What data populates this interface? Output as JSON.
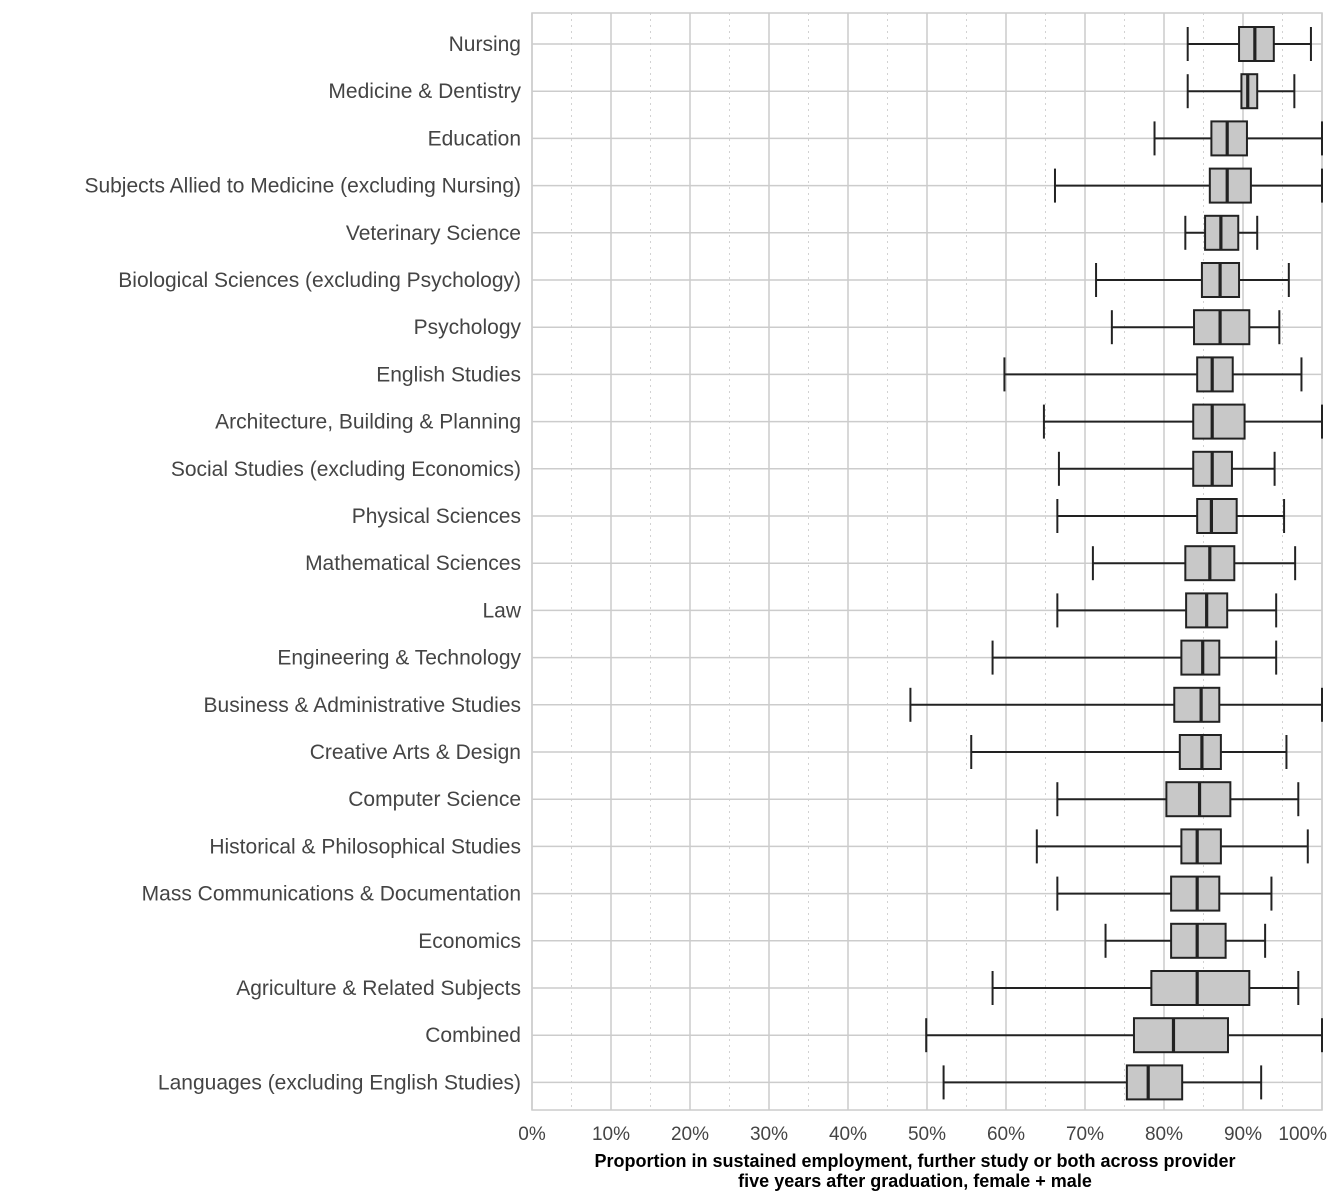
{
  "chart_data": {
    "type": "boxplot",
    "orientation": "horizontal",
    "xlabel_lines": [
      "Proportion in sustained employment, further study or both across provider",
      "five years after graduation, female + male"
    ],
    "ylabel": "",
    "xlim": [
      0,
      100
    ],
    "xticks": [
      0,
      10,
      20,
      30,
      40,
      50,
      60,
      70,
      80,
      90,
      100
    ],
    "xtick_labels": [
      "0%",
      "10%",
      "20%",
      "30%",
      "40%",
      "50%",
      "60%",
      "70%",
      "80%",
      "90%",
      "100%"
    ],
    "grid": "major solid, minor dotted",
    "box_color": "#c8c8c8",
    "line_color": "#222222",
    "categories": [
      "Nursing",
      "Medicine & Dentistry",
      "Education",
      "Subjects Allied to Medicine (excluding Nursing)",
      "Veterinary Science",
      "Biological Sciences (excluding Psychology)",
      "Psychology",
      "English Studies",
      "Architecture, Building & Planning",
      "Social Studies (excluding Economics)",
      "Physical Sciences",
      "Mathematical Sciences",
      "Law",
      "Engineering & Technology",
      "Business & Administrative Studies",
      "Creative Arts & Design",
      "Computer Science",
      "Historical & Philosophical Studies",
      "Mass Communications & Documentation",
      "Economics",
      "Agriculture & Related Subjects",
      "Combined",
      "Languages (excluding English Studies)"
    ],
    "boxes": [
      {
        "min": 83.0,
        "q1": 89.5,
        "median": 91.5,
        "q3": 93.9,
        "max": 98.6
      },
      {
        "min": 83.0,
        "q1": 89.8,
        "median": 90.6,
        "q3": 91.8,
        "max": 96.5
      },
      {
        "min": 78.8,
        "q1": 86.0,
        "median": 88.0,
        "q3": 90.5,
        "max": 100.0
      },
      {
        "min": 66.2,
        "q1": 85.8,
        "median": 88.0,
        "q3": 91.0,
        "max": 100.0
      },
      {
        "min": 82.7,
        "q1": 85.2,
        "median": 87.2,
        "q3": 89.4,
        "max": 91.8
      },
      {
        "min": 71.4,
        "q1": 84.8,
        "median": 87.1,
        "q3": 89.5,
        "max": 95.8
      },
      {
        "min": 73.4,
        "q1": 83.8,
        "median": 87.1,
        "q3": 90.8,
        "max": 94.6
      },
      {
        "min": 59.8,
        "q1": 84.2,
        "median": 86.1,
        "q3": 88.7,
        "max": 97.4
      },
      {
        "min": 64.8,
        "q1": 83.7,
        "median": 86.1,
        "q3": 90.2,
        "max": 100.0
      },
      {
        "min": 66.7,
        "q1": 83.7,
        "median": 86.1,
        "q3": 88.6,
        "max": 94.0
      },
      {
        "min": 66.5,
        "q1": 84.2,
        "median": 86.0,
        "q3": 89.2,
        "max": 95.2
      },
      {
        "min": 71.0,
        "q1": 82.7,
        "median": 85.8,
        "q3": 88.9,
        "max": 96.6
      },
      {
        "min": 66.5,
        "q1": 82.8,
        "median": 85.4,
        "q3": 88.0,
        "max": 94.2
      },
      {
        "min": 58.3,
        "q1": 82.2,
        "median": 84.9,
        "q3": 87.0,
        "max": 94.2
      },
      {
        "min": 47.9,
        "q1": 81.3,
        "median": 84.7,
        "q3": 87.0,
        "max": 100.0
      },
      {
        "min": 55.6,
        "q1": 82.0,
        "median": 84.8,
        "q3": 87.2,
        "max": 95.5
      },
      {
        "min": 66.5,
        "q1": 80.3,
        "median": 84.5,
        "q3": 88.4,
        "max": 97.0
      },
      {
        "min": 63.9,
        "q1": 82.2,
        "median": 84.2,
        "q3": 87.2,
        "max": 98.2
      },
      {
        "min": 66.5,
        "q1": 80.9,
        "median": 84.2,
        "q3": 87.0,
        "max": 93.6
      },
      {
        "min": 72.6,
        "q1": 80.9,
        "median": 84.2,
        "q3": 87.8,
        "max": 92.8
      },
      {
        "min": 58.3,
        "q1": 78.4,
        "median": 84.2,
        "q3": 90.8,
        "max": 97.0
      },
      {
        "min": 49.9,
        "q1": 76.2,
        "median": 81.2,
        "q3": 88.1,
        "max": 100.0
      },
      {
        "min": 52.1,
        "q1": 75.3,
        "median": 78.0,
        "q3": 82.3,
        "max": 92.3
      }
    ]
  }
}
